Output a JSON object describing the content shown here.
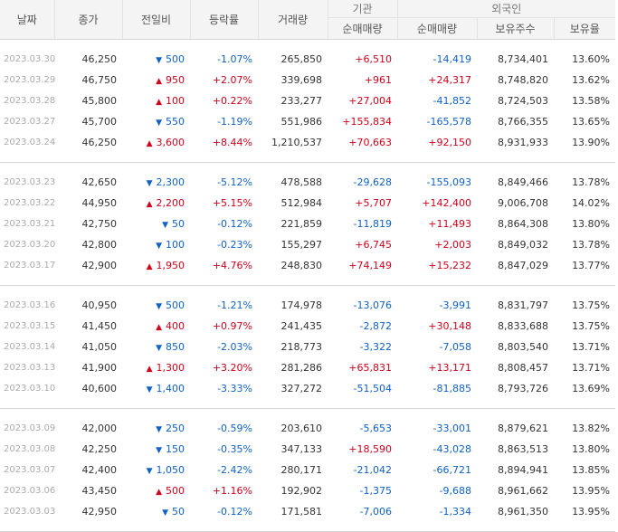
{
  "header": {
    "date": "날짜",
    "close": "종가",
    "change": "전일비",
    "rate": "등락률",
    "volume": "거래량",
    "institution": "기관",
    "foreign": "외국인",
    "inst_net": "순매매량",
    "foreign_net": "순매매량",
    "foreign_shares": "보유주수",
    "foreign_ratio": "보유율"
  },
  "icons": {
    "up": "▲",
    "down": "▼"
  },
  "colors": {
    "up": "#d0021b",
    "down": "#1061c8"
  },
  "groups": [
    {
      "rows": [
        {
          "date": "2023.03.30",
          "close": "46,250",
          "dir": "down",
          "change": "500",
          "rate": "-1.07%",
          "volume": "265,850",
          "inst": "+6,510",
          "foreign": "-14,419",
          "shares": "8,734,401",
          "ratio": "13.60%"
        },
        {
          "date": "2023.03.29",
          "close": "46,750",
          "dir": "up",
          "change": "950",
          "rate": "+2.07%",
          "volume": "339,698",
          "inst": "+961",
          "foreign": "+24,317",
          "shares": "8,748,820",
          "ratio": "13.62%"
        },
        {
          "date": "2023.03.28",
          "close": "45,800",
          "dir": "up",
          "change": "100",
          "rate": "+0.22%",
          "volume": "233,277",
          "inst": "+27,004",
          "foreign": "-41,852",
          "shares": "8,724,503",
          "ratio": "13.58%"
        },
        {
          "date": "2023.03.27",
          "close": "45,700",
          "dir": "down",
          "change": "550",
          "rate": "-1.19%",
          "volume": "551,986",
          "inst": "+155,834",
          "foreign": "-165,578",
          "shares": "8,766,355",
          "ratio": "13.65%"
        },
        {
          "date": "2023.03.24",
          "close": "46,250",
          "dir": "up",
          "change": "3,600",
          "rate": "+8.44%",
          "volume": "1,210,537",
          "inst": "+70,663",
          "foreign": "+92,150",
          "shares": "8,931,933",
          "ratio": "13.90%"
        }
      ]
    },
    {
      "rows": [
        {
          "date": "2023.03.23",
          "close": "42,650",
          "dir": "down",
          "change": "2,300",
          "rate": "-5.12%",
          "volume": "478,588",
          "inst": "-29,628",
          "foreign": "-155,093",
          "shares": "8,849,466",
          "ratio": "13.78%"
        },
        {
          "date": "2023.03.22",
          "close": "44,950",
          "dir": "up",
          "change": "2,200",
          "rate": "+5.15%",
          "volume": "512,984",
          "inst": "+5,707",
          "foreign": "+142,400",
          "shares": "9,006,708",
          "ratio": "14.02%"
        },
        {
          "date": "2023.03.21",
          "close": "42,750",
          "dir": "down",
          "change": "50",
          "rate": "-0.12%",
          "volume": "221,859",
          "inst": "-11,819",
          "foreign": "+11,493",
          "shares": "8,864,308",
          "ratio": "13.80%"
        },
        {
          "date": "2023.03.20",
          "close": "42,800",
          "dir": "down",
          "change": "100",
          "rate": "-0.23%",
          "volume": "155,297",
          "inst": "+6,745",
          "foreign": "+2,003",
          "shares": "8,849,032",
          "ratio": "13.78%"
        },
        {
          "date": "2023.03.17",
          "close": "42,900",
          "dir": "up",
          "change": "1,950",
          "rate": "+4.76%",
          "volume": "248,830",
          "inst": "+74,149",
          "foreign": "+15,232",
          "shares": "8,847,029",
          "ratio": "13.77%"
        }
      ]
    },
    {
      "rows": [
        {
          "date": "2023.03.16",
          "close": "40,950",
          "dir": "down",
          "change": "500",
          "rate": "-1.21%",
          "volume": "174,978",
          "inst": "-13,076",
          "foreign": "-3,991",
          "shares": "8,831,797",
          "ratio": "13.75%"
        },
        {
          "date": "2023.03.15",
          "close": "41,450",
          "dir": "up",
          "change": "400",
          "rate": "+0.97%",
          "volume": "241,435",
          "inst": "-2,872",
          "foreign": "+30,148",
          "shares": "8,833,688",
          "ratio": "13.75%"
        },
        {
          "date": "2023.03.14",
          "close": "41,050",
          "dir": "down",
          "change": "850",
          "rate": "-2.03%",
          "volume": "218,773",
          "inst": "-3,322",
          "foreign": "-7,058",
          "shares": "8,803,540",
          "ratio": "13.71%"
        },
        {
          "date": "2023.03.13",
          "close": "41,900",
          "dir": "up",
          "change": "1,300",
          "rate": "+3.20%",
          "volume": "281,286",
          "inst": "+65,831",
          "foreign": "+13,171",
          "shares": "8,808,457",
          "ratio": "13.71%"
        },
        {
          "date": "2023.03.10",
          "close": "40,600",
          "dir": "down",
          "change": "1,400",
          "rate": "-3.33%",
          "volume": "327,272",
          "inst": "-51,504",
          "foreign": "-81,885",
          "shares": "8,793,726",
          "ratio": "13.69%"
        }
      ]
    },
    {
      "rows": [
        {
          "date": "2023.03.09",
          "close": "42,000",
          "dir": "down",
          "change": "250",
          "rate": "-0.59%",
          "volume": "203,610",
          "inst": "-5,653",
          "foreign": "-33,001",
          "shares": "8,879,621",
          "ratio": "13.82%"
        },
        {
          "date": "2023.03.08",
          "close": "42,250",
          "dir": "down",
          "change": "150",
          "rate": "-0.35%",
          "volume": "347,133",
          "inst": "+18,590",
          "foreign": "-43,028",
          "shares": "8,863,513",
          "ratio": "13.80%"
        },
        {
          "date": "2023.03.07",
          "close": "42,400",
          "dir": "down",
          "change": "1,050",
          "rate": "-2.42%",
          "volume": "280,171",
          "inst": "-21,042",
          "foreign": "-66,721",
          "shares": "8,894,941",
          "ratio": "13.85%"
        },
        {
          "date": "2023.03.06",
          "close": "43,450",
          "dir": "up",
          "change": "500",
          "rate": "+1.16%",
          "volume": "192,902",
          "inst": "-1,375",
          "foreign": "-9,688",
          "shares": "8,961,662",
          "ratio": "13.95%"
        },
        {
          "date": "2023.03.03",
          "close": "42,950",
          "dir": "down",
          "change": "50",
          "rate": "-0.12%",
          "volume": "171,581",
          "inst": "-7,006",
          "foreign": "-1,334",
          "shares": "8,961,350",
          "ratio": "13.95%"
        }
      ]
    }
  ]
}
